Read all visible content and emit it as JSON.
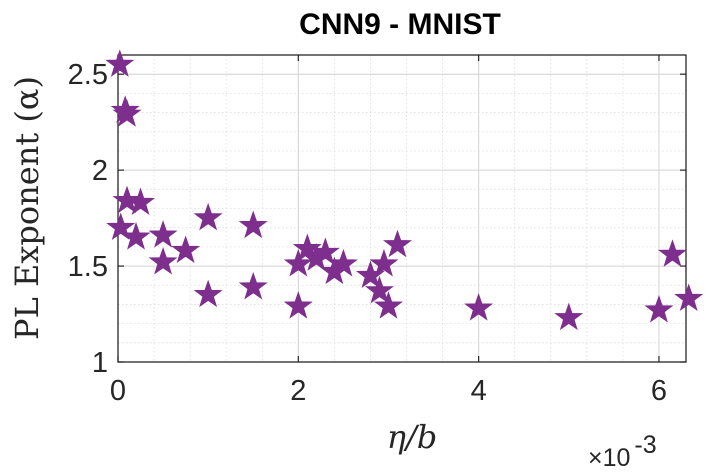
{
  "chart_data": {
    "type": "scatter",
    "title": "CNN9 - MNIST",
    "xlabel": "η/b",
    "ylabel": "PL Exponent (α)",
    "x_multiplier": "×10",
    "x_multiplier_exp": "-3",
    "xlim": [
      0,
      0.0063
    ],
    "ylim": [
      1,
      2.6
    ],
    "xticks": [
      0,
      0.002,
      0.004,
      0.006
    ],
    "xtick_labels": [
      "0",
      "2",
      "4",
      "6"
    ],
    "yticks": [
      1,
      1.5,
      2,
      2.5
    ],
    "ytick_labels": [
      "1",
      "1.5",
      "2",
      "2.5"
    ],
    "grid": true,
    "minor_grid": true,
    "marker": "pentagram",
    "marker_color": "#7E2F8E",
    "points": [
      {
        "x": 2e-05,
        "y": 2.55
      },
      {
        "x": 8e-05,
        "y": 2.31
      },
      {
        "x": 0.0001,
        "y": 2.29
      },
      {
        "x": 0.0001,
        "y": 1.84
      },
      {
        "x": 0.00025,
        "y": 1.83
      },
      {
        "x": 3e-05,
        "y": 1.7
      },
      {
        "x": 0.0002,
        "y": 1.65
      },
      {
        "x": 0.0005,
        "y": 1.66
      },
      {
        "x": 0.0005,
        "y": 1.52
      },
      {
        "x": 0.00075,
        "y": 1.58
      },
      {
        "x": 0.001,
        "y": 1.75
      },
      {
        "x": 0.001,
        "y": 1.35
      },
      {
        "x": 0.0015,
        "y": 1.71
      },
      {
        "x": 0.0015,
        "y": 1.39
      },
      {
        "x": 0.002,
        "y": 1.51
      },
      {
        "x": 0.002,
        "y": 1.29
      },
      {
        "x": 0.0021,
        "y": 1.59
      },
      {
        "x": 0.0022,
        "y": 1.54
      },
      {
        "x": 0.0023,
        "y": 1.57
      },
      {
        "x": 0.0024,
        "y": 1.47
      },
      {
        "x": 0.0025,
        "y": 1.51
      },
      {
        "x": 0.0028,
        "y": 1.45
      },
      {
        "x": 0.0029,
        "y": 1.37
      },
      {
        "x": 0.00295,
        "y": 1.51
      },
      {
        "x": 0.003,
        "y": 1.29
      },
      {
        "x": 0.0031,
        "y": 1.61
      },
      {
        "x": 0.004,
        "y": 1.28
      },
      {
        "x": 0.005,
        "y": 1.23
      },
      {
        "x": 0.006,
        "y": 1.27
      },
      {
        "x": 0.00615,
        "y": 1.56
      },
      {
        "x": 0.00633,
        "y": 1.33
      }
    ]
  }
}
